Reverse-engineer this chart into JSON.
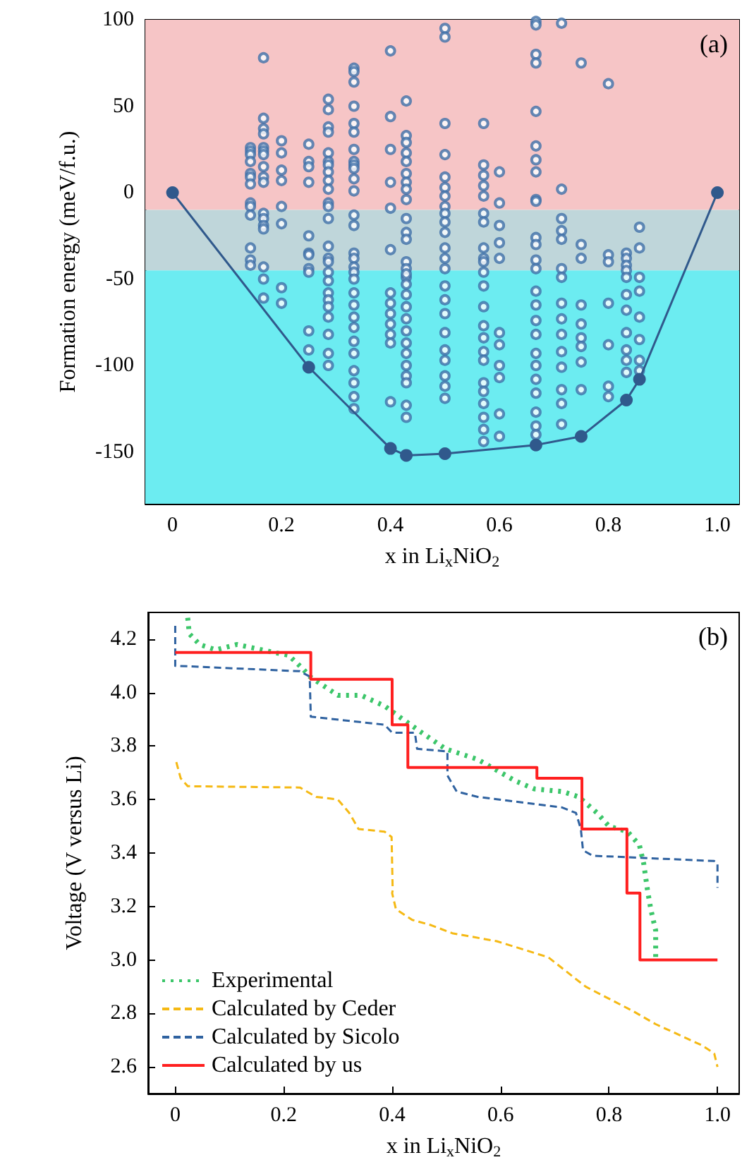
{
  "chart_data": [
    {
      "type": "scatter",
      "xlabel": "x in Li$_{x}$NiO$_{2}$",
      "ylabel": "Formation energy (meV/f.u.)",
      "annotations": [
        "(a)"
      ],
      "xlim": [
        -0.05,
        1.04
      ],
      "ylim": [
        -180,
        100
      ],
      "xticks": [
        0,
        0.2,
        0.4,
        0.6,
        0.8,
        {
          "value": 1,
          "label": "1.0"
        }
      ],
      "yticks": [
        -150,
        -100,
        -50,
        0,
        50,
        100
      ],
      "grid": false,
      "legend": false,
      "bands": [
        {
          "axis": "y",
          "from": -10,
          "to": 100,
          "color": "#f6c5c6"
        },
        {
          "axis": "y",
          "from": -45,
          "to": -10,
          "color": "#bfd6da"
        },
        {
          "axis": "y",
          "from": -180,
          "to": -45,
          "color": "#6cecf1"
        }
      ],
      "series": [
        {
          "type": "scatter",
          "color": "#3e6fa8",
          "marker": "circle",
          "x": [
            0.143,
            0.143,
            0.143,
            0.143,
            0.143,
            0.143,
            0.143,
            0.143,
            0.143,
            0.143,
            0.143,
            0.143,
            0.143
          ],
          "values": [
            26,
            24,
            22,
            18,
            11,
            9,
            5,
            -6,
            -8,
            -13,
            -32,
            -39,
            -42
          ]
        },
        {
          "type": "scatter",
          "color": "#3e6fa8",
          "marker": "circle",
          "x": [
            0.167,
            0.167,
            0.167,
            0.167,
            0.167,
            0.167,
            0.167,
            0.167,
            0.167,
            0.167,
            0.167,
            0.167,
            0.167,
            0.167,
            0.167,
            0.167,
            0.167
          ],
          "values": [
            78,
            43,
            37,
            34,
            26,
            24,
            22,
            15,
            9,
            6,
            -12,
            -15,
            -19,
            -21,
            -43,
            -50,
            -61
          ]
        },
        {
          "type": "scatter",
          "color": "#3e6fa8",
          "marker": "circle",
          "x": [
            0.2,
            0.2,
            0.2,
            0.2,
            0.2,
            0.2,
            0.2,
            0.2
          ],
          "values": [
            30,
            23,
            13,
            7,
            -8,
            -18,
            -55,
            -64
          ]
        },
        {
          "type": "scatter",
          "color": "#3e6fa8",
          "marker": "circle",
          "x": [
            0.25,
            0.25,
            0.25,
            0.25,
            0.25,
            0.25,
            0.25,
            0.25,
            0.25,
            0.25,
            0.25
          ],
          "values": [
            28,
            18,
            15,
            6,
            -25,
            -35,
            -44,
            -36,
            -46,
            -80,
            -91
          ]
        },
        {
          "type": "scatter",
          "color": "#3e6fa8",
          "marker": "circle",
          "x": [
            0.286,
            0.286,
            0.286,
            0.286,
            0.286,
            0.286,
            0.286,
            0.286,
            0.286,
            0.286,
            0.286,
            0.286,
            0.286,
            0.286,
            0.286,
            0.286,
            0.286,
            0.286,
            0.286,
            0.286,
            0.286,
            0.286,
            0.286,
            0.286,
            0.286
          ],
          "values": [
            54,
            48,
            38,
            35,
            23,
            18,
            16,
            12,
            7,
            2,
            -6,
            -8,
            -15,
            -31,
            -38,
            -40,
            -46,
            -51,
            -58,
            -62,
            -66,
            -72,
            -82,
            -93,
            -100
          ]
        },
        {
          "type": "scatter",
          "color": "#3e6fa8",
          "marker": "circle",
          "x": [
            0.333,
            0.333,
            0.333,
            0.333,
            0.333,
            0.333,
            0.333,
            0.333,
            0.333,
            0.333,
            0.333,
            0.333,
            0.333,
            0.333,
            0.333,
            0.333,
            0.333,
            0.333,
            0.333,
            0.333,
            0.333,
            0.333,
            0.333,
            0.333,
            0.333,
            0.333,
            0.333,
            0.333,
            0.333
          ],
          "values": [
            72,
            70,
            64,
            50,
            40,
            35,
            25,
            18,
            16,
            14,
            8,
            1,
            -13,
            -19,
            -35,
            -38,
            -43,
            -46,
            -50,
            -58,
            -65,
            -72,
            -78,
            -86,
            -93,
            -103,
            -110,
            -118,
            -125
          ]
        },
        {
          "type": "scatter",
          "color": "#3e6fa8",
          "marker": "circle",
          "x": [
            0.4,
            0.4,
            0.4,
            0.4,
            0.4,
            0.4,
            0.4,
            0.4,
            0.4,
            0.4,
            0.4,
            0.4,
            0.4
          ],
          "values": [
            82,
            44,
            25,
            6,
            -9,
            -33,
            -58,
            -64,
            -70,
            -76,
            -82,
            -87,
            -121
          ]
        },
        {
          "type": "scatter",
          "color": "#3e6fa8",
          "marker": "circle",
          "x": [
            0.429,
            0.429,
            0.429,
            0.429,
            0.429,
            0.429,
            0.429,
            0.429,
            0.429,
            0.429,
            0.429,
            0.429,
            0.429,
            0.429,
            0.429,
            0.429,
            0.429,
            0.429,
            0.429,
            0.429,
            0.429,
            0.429,
            0.429,
            0.429,
            0.429,
            0.429,
            0.429,
            0.429
          ],
          "values": [
            53,
            33,
            29,
            23,
            18,
            11,
            6,
            2,
            -4,
            -15,
            -23,
            -27,
            -40,
            -44,
            -49,
            -47,
            -53,
            -59,
            -66,
            -73,
            -80,
            -87,
            -93,
            -100,
            -106,
            -110,
            -123,
            -130
          ]
        },
        {
          "type": "scatter",
          "color": "#3e6fa8",
          "marker": "circle",
          "x": [
            0.5,
            0.5,
            0.5,
            0.5,
            0.5,
            0.5,
            0.5,
            0.5,
            0.5,
            0.5,
            0.5,
            0.5,
            0.5,
            0.5,
            0.5,
            0.5,
            0.5,
            0.5,
            0.5,
            0.5,
            0.5,
            0.5,
            0.5
          ],
          "values": [
            95,
            90,
            40,
            22,
            9,
            3,
            -2,
            -8,
            -12,
            -17,
            -23,
            -32,
            -38,
            -44,
            -54,
            -62,
            -70,
            -81,
            -91,
            -97,
            -106,
            -112,
            -119
          ]
        },
        {
          "type": "scatter",
          "color": "#3e6fa8",
          "marker": "circle",
          "x": [
            0.571,
            0.571,
            0.571,
            0.571,
            0.571,
            0.571,
            0.571,
            0.571,
            0.571,
            0.571,
            0.571,
            0.571,
            0.571,
            0.571,
            0.571,
            0.571,
            0.571,
            0.571,
            0.571,
            0.571,
            0.571,
            0.571,
            0.571
          ],
          "values": [
            40,
            16,
            10,
            4,
            -2,
            -12,
            -17,
            -32,
            -38,
            -46,
            -40,
            -54,
            -66,
            -77,
            -84,
            -92,
            -97,
            -110,
            -115,
            -122,
            -130,
            -137,
            -144
          ]
        },
        {
          "type": "scatter",
          "color": "#3e6fa8",
          "marker": "circle",
          "x": [
            0.6,
            0.6,
            0.6,
            0.6,
            0.6,
            0.6,
            0.6,
            0.6,
            0.6,
            0.6,
            0.6
          ],
          "values": [
            12,
            -6,
            -19,
            -29,
            -38,
            -81,
            -88,
            -100,
            -107,
            -128,
            -141
          ]
        },
        {
          "type": "scatter",
          "color": "#3e6fa8",
          "marker": "circle",
          "x": [
            0.667,
            0.667,
            0.667,
            0.667,
            0.667,
            0.667,
            0.667,
            0.667,
            0.667,
            0.667,
            0.667,
            0.667,
            0.667,
            0.667,
            0.667,
            0.667,
            0.667,
            0.667,
            0.667,
            0.667,
            0.667,
            0.667,
            0.667,
            0.667,
            0.667
          ],
          "values": [
            99,
            97,
            80,
            75,
            47,
            27,
            19,
            12,
            -4,
            -5,
            -26,
            -30,
            -39,
            -44,
            -57,
            -65,
            -74,
            -82,
            -93,
            -100,
            -108,
            -116,
            -127,
            -135,
            -140
          ]
        },
        {
          "type": "scatter",
          "color": "#3e6fa8",
          "marker": "circle",
          "x": [
            0.714,
            0.714,
            0.714,
            0.714,
            0.714,
            0.714,
            0.714,
            0.714,
            0.714,
            0.714,
            0.714,
            0.714,
            0.714,
            0.714,
            0.714
          ],
          "values": [
            98,
            2,
            -15,
            -22,
            -27,
            -44,
            -49,
            -64,
            -73,
            -82,
            -92,
            -101,
            -114,
            -122,
            -134
          ]
        },
        {
          "type": "scatter",
          "color": "#3e6fa8",
          "marker": "circle",
          "x": [
            0.75,
            0.75,
            0.75,
            0.75,
            0.75,
            0.75,
            0.75,
            0.75,
            0.75
          ],
          "values": [
            75,
            -30,
            -38,
            -65,
            -76,
            -84,
            -89,
            -98,
            -114
          ]
        },
        {
          "type": "scatter",
          "color": "#3e6fa8",
          "marker": "circle",
          "x": [
            0.8,
            0.8,
            0.8,
            0.8,
            0.8,
            0.8,
            0.8
          ],
          "values": [
            63,
            -36,
            -40,
            -64,
            -88,
            -112,
            -118
          ]
        },
        {
          "type": "scatter",
          "color": "#3e6fa8",
          "marker": "circle",
          "x": [
            0.833,
            0.833,
            0.833,
            0.833,
            0.833,
            0.833,
            0.833,
            0.833,
            0.833,
            0.833,
            0.833
          ],
          "values": [
            -35,
            -38,
            -42,
            -45,
            -49,
            -59,
            -68,
            -81,
            -91,
            -97,
            -104
          ]
        },
        {
          "type": "scatter",
          "color": "#3e6fa8",
          "marker": "circle",
          "x": [
            0.857,
            0.857,
            0.857,
            0.857,
            0.857,
            0.857,
            0.857,
            0.857
          ],
          "values": [
            -20,
            -32,
            -49,
            -57,
            -72,
            -85,
            -97,
            -103
          ]
        },
        {
          "type": "line",
          "color": "#30598c",
          "marker": "circle",
          "line_style": "solid",
          "x": [
            0,
            0.25,
            0.4,
            0.429,
            0.5,
            0.667,
            0.75,
            0.833,
            0.857,
            1
          ],
          "values": [
            0,
            -101,
            -148,
            -152,
            -151,
            -146,
            -141,
            -120,
            -108,
            0
          ]
        }
      ]
    },
    {
      "type": "line",
      "xlabel": "x in Li$_{x}$NiO$_{2}$",
      "ylabel": "Voltage (V versus Li)",
      "annotations": [
        "(b)"
      ],
      "xlim": [
        -0.05,
        1.04
      ],
      "ylim": [
        2.5,
        4.3
      ],
      "xticks": [
        0,
        0.2,
        0.4,
        0.6,
        0.8,
        {
          "value": 1,
          "label": "1.0"
        }
      ],
      "yticks": [
        2.6,
        2.8,
        {
          "value": 3,
          "label": "3.0"
        },
        3.2,
        3.4,
        3.6,
        3.8,
        {
          "value": 4,
          "label": "4.0"
        },
        4.2
      ],
      "grid": false,
      "legend": "bottom left",
      "marker": "none",
      "series": [
        {
          "name": "Experimental",
          "color": "#3cc66a",
          "line_style": "dotted",
          "x": [
            0.023,
            0.026,
            0.045,
            0.075,
            0.114,
            0.183,
            0.209,
            0.235,
            0.248,
            0.3,
            0.343,
            0.386,
            0.42,
            0.455,
            0.498,
            0.558,
            0.627,
            0.662,
            0.714,
            0.744,
            0.778,
            0.8,
            0.834,
            0.856,
            0.864,
            0.871,
            0.877,
            0.886,
            0.886
          ],
          "values": [
            4.28,
            4.22,
            4.18,
            4.16,
            4.18,
            4.15,
            4.14,
            4.09,
            4.06,
            3.99,
            3.99,
            3.95,
            3.9,
            3.85,
            3.79,
            3.75,
            3.67,
            3.64,
            3.63,
            3.61,
            3.55,
            3.5,
            3.48,
            3.43,
            3.36,
            3.26,
            3.19,
            3.11,
            3.01
          ]
        },
        {
          "name": "Calculated by Ceder",
          "color": "#f5b914",
          "line_style": "dashed",
          "x": [
            0.002,
            0.01,
            0.023,
            0.23,
            0.26,
            0.3,
            0.321,
            0.338,
            0.386,
            0.399,
            0.401,
            0.4,
            0.407,
            0.437,
            0.472,
            0.511,
            0.593,
            0.688,
            0.757,
            0.843,
            0.886,
            0.972,
            0.994,
            1
          ],
          "values": [
            3.74,
            3.68,
            3.65,
            3.645,
            3.61,
            3.6,
            3.55,
            3.49,
            3.48,
            3.46,
            3.26,
            3.25,
            3.19,
            3.15,
            3.13,
            3.1,
            3.07,
            3.01,
            2.9,
            2.81,
            2.76,
            2.68,
            2.65,
            2.6
          ]
        },
        {
          "name": "Calculated by Sicolo",
          "color": "#2f62a0",
          "line_style": "dashed",
          "x": [
            0,
            0,
            0.005,
            0.23,
            0.248,
            0.25,
            0.386,
            0.4,
            0.442,
            0.446,
            0.502,
            0.502,
            0.519,
            0.558,
            0.714,
            0.739,
            0.748,
            0.752,
            0.77,
            0.994,
            1,
            1
          ],
          "values": [
            4.25,
            4.1,
            4.1,
            4.08,
            4.06,
            3.91,
            3.88,
            3.85,
            3.85,
            3.79,
            3.78,
            3.69,
            3.63,
            3.61,
            3.57,
            3.55,
            3.49,
            3.41,
            3.39,
            3.37,
            3.36,
            3.27
          ]
        },
        {
          "name": "Calculated by us",
          "color": "#ff1f1f",
          "type": "step",
          "line_style": "solid",
          "x": [
            0,
            0.25,
            0.4,
            0.429,
            0.667,
            0.75,
            0.833,
            0.857,
            1
          ],
          "values": [
            4.15,
            4.05,
            3.88,
            3.72,
            3.68,
            3.49,
            3.25,
            3.0,
            3.0
          ]
        }
      ]
    }
  ]
}
